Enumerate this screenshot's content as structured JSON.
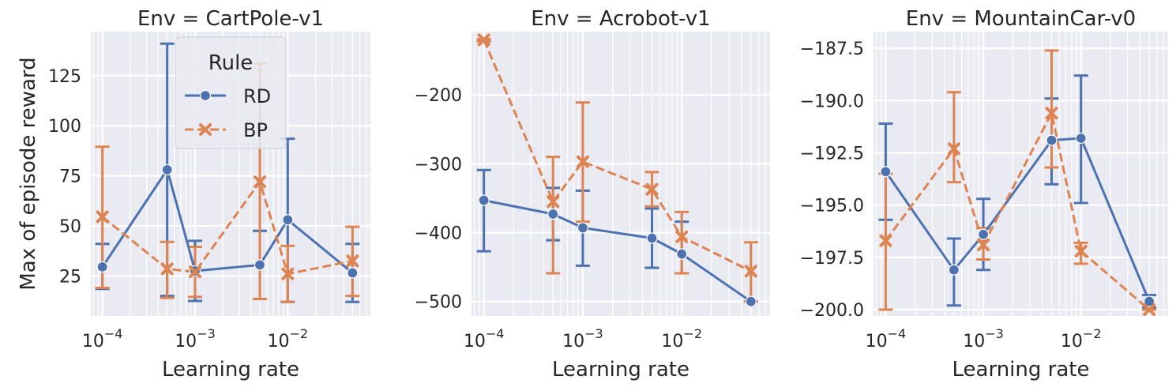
{
  "figure": {
    "ylabel": "Max of episode reward",
    "xlabel": "Learning rate",
    "legend": {
      "title": "Rule",
      "placement": "upper-right-of-first-panel",
      "entries": [
        {
          "label": "RD",
          "marker": "circle"
        },
        {
          "label": "BP",
          "marker": "x"
        }
      ]
    },
    "colors": {
      "RD": "#4c72b0",
      "BP": "#dd8452",
      "panel_bg": "#eaeaf2",
      "grid": "#ffffff",
      "text": "#262626"
    },
    "x_tick_labels": [
      {
        "value": 0.0001,
        "base": "10",
        "exp": "−4"
      },
      {
        "value": 0.001,
        "base": "10",
        "exp": "−3"
      },
      {
        "value": 0.01,
        "base": "10",
        "exp": "−2"
      }
    ]
  },
  "chart_data": [
    {
      "type": "line",
      "title": "Env = CartPole-v1",
      "x_scale": "log",
      "xlim": [
        7.5e-05,
        0.078
      ],
      "ylim": [
        5,
        147
      ],
      "yticks": [
        25,
        50,
        75,
        100,
        125
      ],
      "ytick_labels": [
        "25",
        "50",
        "75",
        "100",
        "125"
      ],
      "series": [
        {
          "name": "RD",
          "style": "solid",
          "points": [
            {
              "x": 0.0001,
              "y": 29.5,
              "lo": 18.5,
              "hi": 41
            },
            {
              "x": 0.0005,
              "y": 78,
              "lo": 15,
              "hi": 141
            },
            {
              "x": 0.001,
              "y": 27.5,
              "lo": 12.5,
              "hi": 42.5
            },
            {
              "x": 0.005,
              "y": 30.5,
              "lo": 13.5,
              "hi": 47.5
            },
            {
              "x": 0.01,
              "y": 53,
              "lo": 12,
              "hi": 93.5
            },
            {
              "x": 0.05,
              "y": 26.5,
              "lo": 12,
              "hi": 41
            }
          ]
        },
        {
          "name": "BP",
          "style": "dashed",
          "points": [
            {
              "x": 0.0001,
              "y": 54.5,
              "lo": 19,
              "hi": 89.5
            },
            {
              "x": 0.0005,
              "y": 28.5,
              "lo": 14,
              "hi": 42
            },
            {
              "x": 0.001,
              "y": 27,
              "lo": 14.5,
              "hi": 39.5
            },
            {
              "x": 0.005,
              "y": 72,
              "lo": 13.5,
              "hi": 131
            },
            {
              "x": 0.01,
              "y": 26,
              "lo": 12,
              "hi": 40
            },
            {
              "x": 0.05,
              "y": 32.5,
              "lo": 15,
              "hi": 49.5
            }
          ]
        }
      ]
    },
    {
      "type": "line",
      "title": "Env = Acrobot-v1",
      "x_scale": "log",
      "xlim": [
        7.5e-05,
        0.078
      ],
      "ylim": [
        -521,
        -108
      ],
      "yticks": [
        -500,
        -400,
        -300,
        -200
      ],
      "ytick_labels": [
        "−500",
        "−400",
        "−300",
        "−200"
      ],
      "series": [
        {
          "name": "RD",
          "style": "solid",
          "points": [
            {
              "x": 0.0001,
              "y": -353,
              "lo": -427,
              "hi": -309
            },
            {
              "x": 0.0005,
              "y": -373,
              "lo": -411,
              "hi": -335
            },
            {
              "x": 0.001,
              "y": -393,
              "lo": -448,
              "hi": -339
            },
            {
              "x": 0.005,
              "y": -408,
              "lo": -451,
              "hi": -365
            },
            {
              "x": 0.01,
              "y": -431,
              "lo": -459,
              "hi": -384
            },
            {
              "x": 0.05,
              "y": -500,
              "lo": -500,
              "hi": -500
            }
          ]
        },
        {
          "name": "BP",
          "style": "dashed",
          "points": [
            {
              "x": 0.0001,
              "y": -120,
              "lo": -122,
              "hi": -119
            },
            {
              "x": 0.0005,
              "y": -355,
              "lo": -459,
              "hi": -290
            },
            {
              "x": 0.001,
              "y": -297,
              "lo": -384,
              "hi": -211
            },
            {
              "x": 0.005,
              "y": -337,
              "lo": -362,
              "hi": -312
            },
            {
              "x": 0.01,
              "y": -406,
              "lo": -459,
              "hi": -370
            },
            {
              "x": 0.05,
              "y": -456,
              "lo": -500,
              "hi": -414
            }
          ]
        }
      ]
    },
    {
      "type": "line",
      "title": "Env = MountainCar-v0",
      "x_scale": "log",
      "xlim": [
        7.5e-05,
        0.078
      ],
      "ylim": [
        -200.3,
        -186.7
      ],
      "yticks": [
        -200.0,
        -197.5,
        -195.0,
        -192.5,
        -190.0,
        -187.5
      ],
      "ytick_labels": [
        "−200.0",
        "−197.5",
        "−195.0",
        "−192.5",
        "−190.0",
        "−187.5"
      ],
      "series": [
        {
          "name": "RD",
          "style": "solid",
          "points": [
            {
              "x": 0.0001,
              "y": -193.4,
              "lo": -195.7,
              "hi": -191.1
            },
            {
              "x": 0.0005,
              "y": -198.1,
              "lo": -199.8,
              "hi": -196.6
            },
            {
              "x": 0.001,
              "y": -196.4,
              "lo": -198.1,
              "hi": -194.7
            },
            {
              "x": 0.005,
              "y": -191.9,
              "lo": -194.0,
              "hi": -189.9
            },
            {
              "x": 0.01,
              "y": -191.8,
              "lo": -194.9,
              "hi": -188.8
            },
            {
              "x": 0.05,
              "y": -199.6,
              "lo": -199.9,
              "hi": -199.3
            }
          ]
        },
        {
          "name": "BP",
          "style": "dashed",
          "points": [
            {
              "x": 0.0001,
              "y": -196.7,
              "lo": -200.0,
              "hi": -193.5
            },
            {
              "x": 0.0005,
              "y": -192.3,
              "lo": -193.9,
              "hi": -189.6
            },
            {
              "x": 0.001,
              "y": -196.9,
              "lo": -197.6,
              "hi": -196.1
            },
            {
              "x": 0.005,
              "y": -190.6,
              "lo": -193.2,
              "hi": -187.6
            },
            {
              "x": 0.01,
              "y": -197.2,
              "lo": -197.8,
              "hi": -196.8
            },
            {
              "x": 0.05,
              "y": -200.0,
              "lo": -200.0,
              "hi": -200.0
            }
          ]
        }
      ]
    }
  ]
}
